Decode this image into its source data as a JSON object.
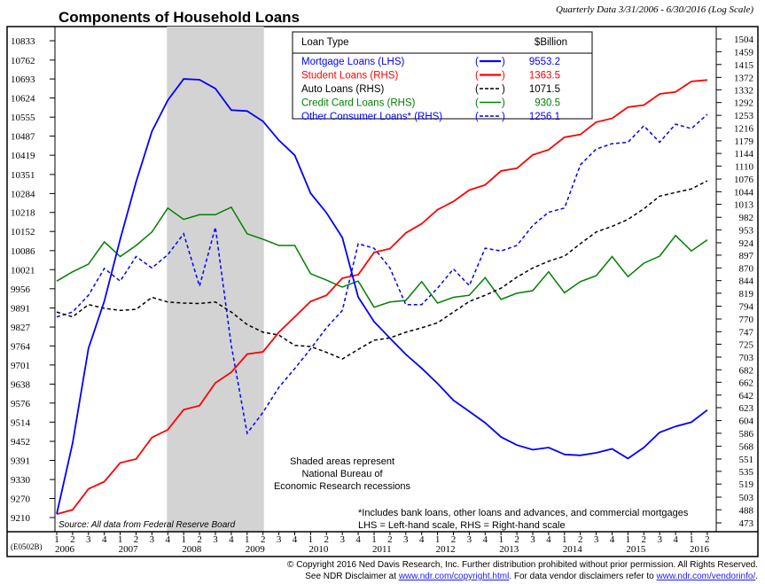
{
  "chart_data": {
    "type": "line",
    "title": "Components of Household Loans",
    "subtitle": "Quarterly Data 3/31/2006 - 6/30/2016 (Log Scale)",
    "chart_code": "(E0502B)",
    "x_quarters": [
      "2006Q1",
      "2006Q2",
      "2006Q3",
      "2006Q4",
      "2007Q1",
      "2007Q2",
      "2007Q3",
      "2007Q4",
      "2008Q1",
      "2008Q2",
      "2008Q3",
      "2008Q4",
      "2009Q1",
      "2009Q2",
      "2009Q3",
      "2009Q4",
      "2010Q1",
      "2010Q2",
      "2010Q3",
      "2010Q4",
      "2011Q1",
      "2011Q2",
      "2011Q3",
      "2011Q4",
      "2012Q1",
      "2012Q2",
      "2012Q3",
      "2012Q4",
      "2013Q1",
      "2013Q2",
      "2013Q3",
      "2013Q4",
      "2014Q1",
      "2014Q2",
      "2014Q3",
      "2014Q4",
      "2015Q1",
      "2015Q2",
      "2015Q3",
      "2015Q4",
      "2016Q1",
      "2016Q2"
    ],
    "x_year_labels": [
      "2006",
      "2007",
      "2008",
      "2009",
      "2010",
      "2011",
      "2012",
      "2013",
      "2014",
      "2015",
      "2016"
    ],
    "x_quarter_tick_labels": [
      "1",
      "2",
      "3",
      "4"
    ],
    "recession_shading": {
      "start": "2007Q4",
      "end": "2009Q2"
    },
    "y_left": {
      "label": "LHS",
      "scale": "log",
      "range": [
        9210,
        10833
      ],
      "ticks": [
        10833,
        10762,
        10693,
        10624,
        10555,
        10487,
        10419,
        10351,
        10284,
        10218,
        10152,
        10086,
        10021,
        9956,
        9891,
        9827,
        9764,
        9701,
        9638,
        9576,
        9514,
        9452,
        9391,
        9330,
        9270,
        9210
      ]
    },
    "y_right": {
      "label": "RHS",
      "scale": "log",
      "range": [
        473,
        1504
      ],
      "ticks": [
        1504,
        1459,
        1415,
        1372,
        1332,
        1292,
        1253,
        1216,
        1179,
        1144,
        1110,
        1076,
        1044,
        1013,
        982,
        953,
        924,
        897,
        870,
        844,
        819,
        794,
        770,
        747,
        725,
        703,
        682,
        662,
        642,
        623,
        604,
        586,
        568,
        551,
        535,
        519,
        503,
        488,
        473
      ]
    },
    "legend": {
      "header_type": "Loan Type",
      "header_value": "$Billion",
      "placement": "top-center"
    },
    "series": [
      {
        "name": "Mortgage Loans (LHS)",
        "axis": "left",
        "color": "#0000ff",
        "style": "solid",
        "last": "9553.2",
        "values": [
          9221,
          9446,
          9756,
          9914,
          10125,
          10325,
          10504,
          10616,
          10693,
          10690,
          10658,
          10580,
          10577,
          10540,
          10472,
          10419,
          10285,
          10217,
          10131,
          9928,
          9845,
          9790,
          9736,
          9690,
          9640,
          9585,
          9549,
          9512,
          9466,
          9440,
          9425,
          9432,
          9410,
          9407,
          9415,
          9428,
          9397,
          9432,
          9481,
          9500,
          9514,
          9553.2
        ]
      },
      {
        "name": "Student Loans (RHS)",
        "axis": "right",
        "color": "#ff0000",
        "style": "solid",
        "last": "1363.5",
        "values": [
          483,
          488,
          513,
          522,
          546,
          551,
          580,
          591,
          620,
          626,
          661,
          678,
          708,
          712,
          746,
          774,
          803,
          815,
          849,
          856,
          903,
          911,
          946,
          967,
          1000,
          1020,
          1048,
          1061,
          1097,
          1104,
          1140,
          1154,
          1189,
          1197,
          1233,
          1244,
          1278,
          1284,
          1319,
          1325,
          1359,
          1363.5
        ]
      },
      {
        "name": "Auto Loans (RHS)",
        "axis": "right",
        "color": "#000000",
        "style": "dashed",
        "last": "1071.5",
        "values": [
          783,
          774,
          797,
          790,
          786,
          788,
          811,
          802,
          800,
          799,
          802,
          783,
          760,
          746,
          741,
          723,
          721,
          711,
          700,
          716,
          732,
          736,
          746,
          754,
          763,
          783,
          803,
          815,
          829,
          851,
          870,
          884,
          895,
          922,
          948,
          961,
          977,
          1002,
          1033,
          1042,
          1051,
          1071.5
        ]
      },
      {
        "name": "Credit Card Loans (RHS)",
        "axis": "right",
        "color": "#008000",
        "style": "solid-thin",
        "last": "930.5",
        "values": [
          843,
          862,
          878,
          926,
          894,
          918,
          948,
          1004,
          977,
          988,
          988,
          1006,
          944,
          932,
          918,
          918,
          858,
          845,
          831,
          843,
          792,
          802,
          805,
          842,
          800,
          811,
          815,
          850,
          807,
          819,
          824,
          862,
          820,
          842,
          854,
          894,
          852,
          880,
          895,
          940,
          906,
          930.5
        ]
      },
      {
        "name": "Other Consumer Loans*  (RHS)",
        "axis": "right",
        "color": "#0000ff",
        "style": "dashed",
        "last": "1256.1",
        "values": [
          774,
          783,
          815,
          869,
          843,
          894,
          870,
          898,
          944,
          833,
          959,
          723,
          586,
          616,
          654,
          684,
          717,
          754,
          786,
          922,
          912,
          870,
          797,
          797,
          829,
          868,
          834,
          912,
          906,
          918,
          963,
          994,
          1004,
          1113,
          1156,
          1171,
          1175,
          1222,
          1175,
          1227,
          1214,
          1256.1
        ]
      }
    ],
    "annotations": {
      "recession_note": [
        "Shaded areas represent",
        "National Bureau of",
        "Economic Research recessions"
      ],
      "footnote": "*Includes bank loans, other loans and advances, and commercial mortgages",
      "scale_note": "LHS = Left-hand scale, RHS = Right-hand scale",
      "source": "Source: All data from Federal Reserve Board"
    }
  },
  "footer": {
    "copyright": "© Copyright 2016 Ned Davis Research, Inc.  Further distribution prohibited without prior permission.  All Rights Reserved.",
    "disclaimer_prefix": "See NDR Disclaimer at ",
    "link1": "www.ndr.com/copyright.html",
    "disclaimer_mid": ". For data vendor disclaimers refer to ",
    "link2": "www.ndr.com/vendorinfo/",
    "disclaimer_end": "."
  }
}
